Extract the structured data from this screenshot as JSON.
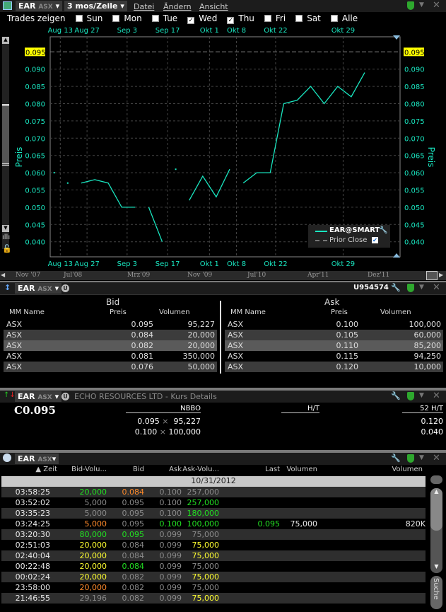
{
  "chart_window": {
    "symbol": "EAR",
    "exchange": "ASX",
    "period": "3 mos/Zeile",
    "menu": [
      "Datei",
      "Ändern",
      "Ansicht"
    ],
    "trades_label": "Trades zeigen",
    "days": [
      {
        "label": "Sun",
        "checked": false
      },
      {
        "label": "Mon",
        "checked": false
      },
      {
        "label": "Tue",
        "checked": false
      },
      {
        "label": "Wed",
        "checked": true
      },
      {
        "label": "Thu",
        "checked": true
      },
      {
        "label": "Fri",
        "checked": false
      },
      {
        "label": "Sat",
        "checked": false
      },
      {
        "label": "Alle",
        "checked": false
      }
    ],
    "timeline": [
      "Nov '07",
      "Jul'08",
      "Mrz'09",
      "Nov '09",
      "Jul'10",
      "Apr'11",
      "Dez'11"
    ],
    "icons": [
      "chart-icon",
      "shield-icon",
      "close-icon"
    ]
  },
  "chart_data": {
    "type": "line",
    "ylabel": "Preis",
    "ylim": [
      0.036,
      0.0975
    ],
    "yticks": [
      "0.040",
      "0.045",
      "0.050",
      "0.055",
      "0.060",
      "0.065",
      "0.070",
      "0.075",
      "0.080",
      "0.085",
      "0.090"
    ],
    "prior_close": "0.095",
    "grid": true,
    "legend": {
      "position": "bottom-right",
      "series": "EAR@SMART",
      "prior": "Prior Close"
    },
    "xticks": [
      {
        "label": "Aug 13",
        "x": 0.45
      },
      {
        "label": "Aug 27",
        "x": 2.43
      },
      {
        "label": "Sep 3",
        "x": 5.4
      },
      {
        "label": "Sep 17",
        "x": 8.4
      },
      {
        "label": "Okt 1",
        "x": 11.5
      },
      {
        "label": "Okt 8",
        "x": 13.5
      },
      {
        "label": "Okt 22",
        "x": 16.4
      },
      {
        "label": "Okt 29",
        "x": 21.4
      }
    ],
    "xlim": [
      -0.3,
      24.2
    ],
    "segments": [
      [
        [
          0,
          0.06
        ]
      ],
      [
        [
          1,
          0.057
        ]
      ],
      [
        [
          2,
          0.057
        ],
        [
          3,
          0.058
        ],
        [
          4,
          0.057
        ],
        [
          5,
          0.05
        ],
        [
          6,
          0.05
        ]
      ],
      [
        [
          7,
          0.05
        ],
        [
          8,
          0.04
        ]
      ],
      [
        [
          9,
          0.061
        ]
      ],
      [
        [
          10,
          0.052
        ],
        [
          11,
          0.059
        ],
        [
          12,
          0.053
        ],
        [
          13,
          0.061
        ]
      ],
      [
        [
          14,
          0.057
        ],
        [
          15,
          0.06
        ],
        [
          16,
          0.06
        ],
        [
          17,
          0.08
        ],
        [
          18,
          0.081
        ],
        [
          19,
          0.085
        ],
        [
          20,
          0.08
        ],
        [
          21,
          0.085
        ],
        [
          22,
          0.082
        ],
        [
          23,
          0.089
        ]
      ]
    ],
    "colors": {
      "line": "#19e6c0",
      "prior": "#888888",
      "highlight": "#ffff00"
    }
  },
  "depth": {
    "symbol": "EAR",
    "exchange": "ASX",
    "account": "U954574",
    "bid_title": "Bid",
    "ask_title": "Ask",
    "cols": [
      "MM Name",
      "Preis",
      "Volumen"
    ],
    "bids": [
      [
        "ASX",
        "0.095",
        "95,227"
      ],
      [
        "ASX",
        "0.084",
        "20,000"
      ],
      [
        "ASX",
        "0.082",
        "20,000"
      ],
      [
        "ASX",
        "0.081",
        "350,000"
      ],
      [
        "ASX",
        "0.076",
        "50,000"
      ]
    ],
    "asks": [
      [
        "ASX",
        "0.100",
        "100,000"
      ],
      [
        "ASX",
        "0.105",
        "60,000"
      ],
      [
        "ASX",
        "0.110",
        "85,200"
      ],
      [
        "ASX",
        "0.115",
        "94,250"
      ],
      [
        "ASX",
        "0.120",
        "10,000"
      ]
    ]
  },
  "quote": {
    "symbol": "EAR",
    "exchange": "ASX",
    "title": "ECHO RESOURCES LTD - Kurs Details",
    "last": "C0.095",
    "nbbo": "NBBO",
    "ht": "H/T",
    "h52": "52 H/T",
    "bid": "0.095",
    "bid_size": "95,227",
    "ask": "0.100",
    "ask_size": "100,000",
    "x": "×",
    "high52": "0.120",
    "low52": "0.040"
  },
  "tas": {
    "symbol": "EAR",
    "exchange": "ASX",
    "cols": [
      "▲ Zeit",
      "Bid-Volu...",
      "Bid",
      "Ask",
      "Ask-Volu...",
      "Last",
      "Volumen",
      "Volumen"
    ],
    "date": "10/31/2012",
    "search": "Suche",
    "colors": {
      "w": "#e8e8e8",
      "g": "#22e022",
      "o": "#ff8a2a",
      "y": "#ffff30",
      "d": "#8a8a8a"
    },
    "rows": [
      {
        "c": [
          "03:58:25",
          "20,000",
          "0.084",
          "0.100",
          "257,000",
          "",
          "",
          ""
        ],
        "k": [
          "w",
          "g",
          "o",
          "d",
          "d",
          "w",
          "w",
          "w"
        ]
      },
      {
        "c": [
          "03:52:02",
          "5,000",
          "0.095",
          "0.100",
          "257,000",
          "",
          "",
          ""
        ],
        "k": [
          "w",
          "d",
          "d",
          "d",
          "g",
          "w",
          "w",
          "w"
        ]
      },
      {
        "c": [
          "03:35:23",
          "5,000",
          "0.095",
          "0.100",
          "180,000",
          "",
          "",
          ""
        ],
        "k": [
          "w",
          "d",
          "d",
          "d",
          "g",
          "w",
          "w",
          "w"
        ]
      },
      {
        "c": [
          "03:24:25",
          "5,000",
          "0.095",
          "0.100",
          "100,000",
          "0.095",
          "75,000",
          "820K"
        ],
        "k": [
          "w",
          "o",
          "d",
          "g",
          "g",
          "g",
          "w",
          "w"
        ]
      },
      {
        "c": [
          "03:20:30",
          "80,000",
          "0.095",
          "0.099",
          "75,000",
          "",
          "",
          ""
        ],
        "k": [
          "w",
          "g",
          "g",
          "d",
          "d",
          "w",
          "w",
          "w"
        ]
      },
      {
        "c": [
          "02:51:03",
          "20,000",
          "0.084",
          "0.099",
          "75,000",
          "",
          "",
          ""
        ],
        "k": [
          "w",
          "y",
          "d",
          "d",
          "y",
          "w",
          "w",
          "w"
        ]
      },
      {
        "c": [
          "02:40:04",
          "20,000",
          "0.084",
          "0.099",
          "75,000",
          "",
          "",
          ""
        ],
        "k": [
          "w",
          "y",
          "d",
          "d",
          "y",
          "w",
          "w",
          "w"
        ]
      },
      {
        "c": [
          "00:22:48",
          "20,000",
          "0.084",
          "0.099",
          "75,000",
          "",
          "",
          ""
        ],
        "k": [
          "w",
          "y",
          "g",
          "d",
          "d",
          "w",
          "w",
          "w"
        ]
      },
      {
        "c": [
          "00:02:24",
          "20,000",
          "0.082",
          "0.099",
          "75,000",
          "",
          "",
          ""
        ],
        "k": [
          "w",
          "y",
          "d",
          "d",
          "y",
          "w",
          "w",
          "w"
        ]
      },
      {
        "c": [
          "23:58:00",
          "20,000",
          "0.082",
          "0.099",
          "75,000",
          "",
          "",
          ""
        ],
        "k": [
          "w",
          "o",
          "d",
          "d",
          "d",
          "w",
          "w",
          "w"
        ]
      },
      {
        "c": [
          "21:46:55",
          "29,196",
          "0.082",
          "0.099",
          "75,000",
          "",
          "",
          ""
        ],
        "k": [
          "w",
          "d",
          "d",
          "d",
          "y",
          "w",
          "w",
          "w"
        ]
      }
    ]
  }
}
